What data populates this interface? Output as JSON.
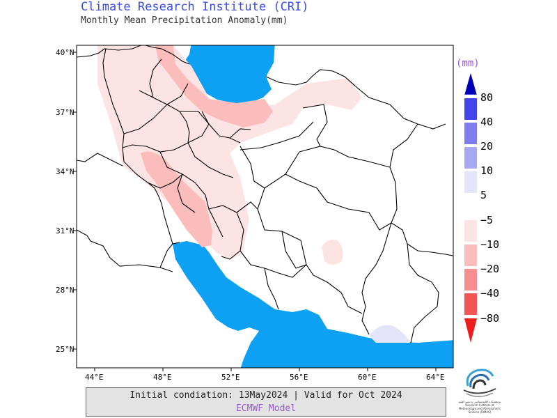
{
  "header": {
    "title": "Climate Research Institute (CRI)",
    "subtitle": "Monthly Mean Precipitation Anomaly(mm)"
  },
  "map": {
    "lat_ticks": [
      "40°N",
      "37°N",
      "34°N",
      "31°N",
      "28°N",
      "25°N"
    ],
    "lon_ticks": [
      "44°E",
      "48°E",
      "52°E",
      "56°E",
      "60°E",
      "64°E"
    ],
    "colors": {
      "sea": "#0ea0f2",
      "land": "#ffffff",
      "border": "#000000",
      "neg5": "#fde4e4",
      "neg10": "#fbbcbc",
      "neg20": "#f58f8f",
      "neg40": "#f15555",
      "neg80": "#ee1c1c",
      "pos5": "#e4e4fa",
      "pos10": "#a9a9f3",
      "pos20": "#7d7df0",
      "pos40": "#4444ee",
      "pos80": "#0000b8"
    }
  },
  "legend": {
    "unit": "(mm)",
    "positive_labels": [
      "80",
      "40",
      "20",
      "10",
      "5"
    ],
    "negative_labels": [
      "−5",
      "−10",
      "−20",
      "−40",
      "−80"
    ]
  },
  "footer": {
    "info_line": "Initial condiation: 13May2024 | Valid for Oct 2024",
    "model_line": "ECMWF Model",
    "logo_text": "پژوهشکده اقلیم‌شناسی و تغییر اقلیم Research Institute of Meteorology and Atmospheric Science (RIMAS)"
  }
}
